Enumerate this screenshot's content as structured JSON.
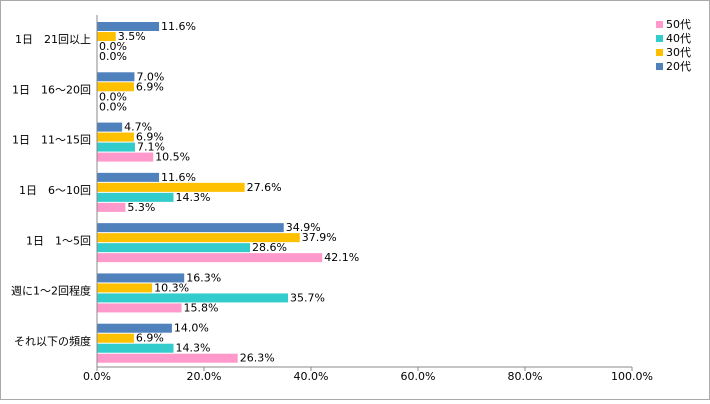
{
  "chart_data": {
    "type": "hbar",
    "categories": [
      "1日　21回以上",
      "1日　16～20回",
      "1日　11～15回",
      "1日　6～10回",
      "1日　1～5回",
      "週に1～2回程度",
      "それ以下の頻度"
    ],
    "series": [
      {
        "name": "20代",
        "color": "#4f81bd",
        "values": [
          11.6,
          7.0,
          4.7,
          11.6,
          34.9,
          16.3,
          14.0
        ],
        "value_labels": [
          "11.6%",
          "7.0%",
          "4.7%",
          "11.6%",
          "34.9%",
          "16.3%",
          "14.0%"
        ]
      },
      {
        "name": "30代",
        "color": "#ffc000",
        "values": [
          3.5,
          6.9,
          6.9,
          27.6,
          37.9,
          10.3,
          6.9
        ],
        "value_labels": [
          "3.5%",
          "6.9%",
          "6.9%",
          "27.6%",
          "37.9%",
          "10.3%",
          "6.9%"
        ]
      },
      {
        "name": "40代",
        "color": "#33cccc",
        "values": [
          0.0,
          0.0,
          7.1,
          14.3,
          28.6,
          35.7,
          14.3
        ],
        "value_labels": [
          "0.0%",
          "0.0%",
          "7.1%",
          "14.3%",
          "28.6%",
          "35.7%",
          "14.3%"
        ]
      },
      {
        "name": "50代",
        "color": "#ff99cc",
        "values": [
          0.0,
          0.0,
          10.5,
          5.3,
          42.1,
          15.8,
          26.3
        ],
        "value_labels": [
          "0.0%",
          "0.0%",
          "10.5%",
          "5.3%",
          "42.1%",
          "15.8%",
          "26.3%"
        ]
      }
    ],
    "xlim": [
      0,
      100
    ],
    "xticks": [
      {
        "value": 0,
        "label": "0.0%"
      },
      {
        "value": 20,
        "label": "20.0%"
      },
      {
        "value": 40,
        "label": "40.0%"
      },
      {
        "value": 60,
        "label": "60.0%"
      },
      {
        "value": 80,
        "label": "80.0%"
      },
      {
        "value": 100,
        "label": "100.0%"
      }
    ],
    "legend": "right"
  }
}
